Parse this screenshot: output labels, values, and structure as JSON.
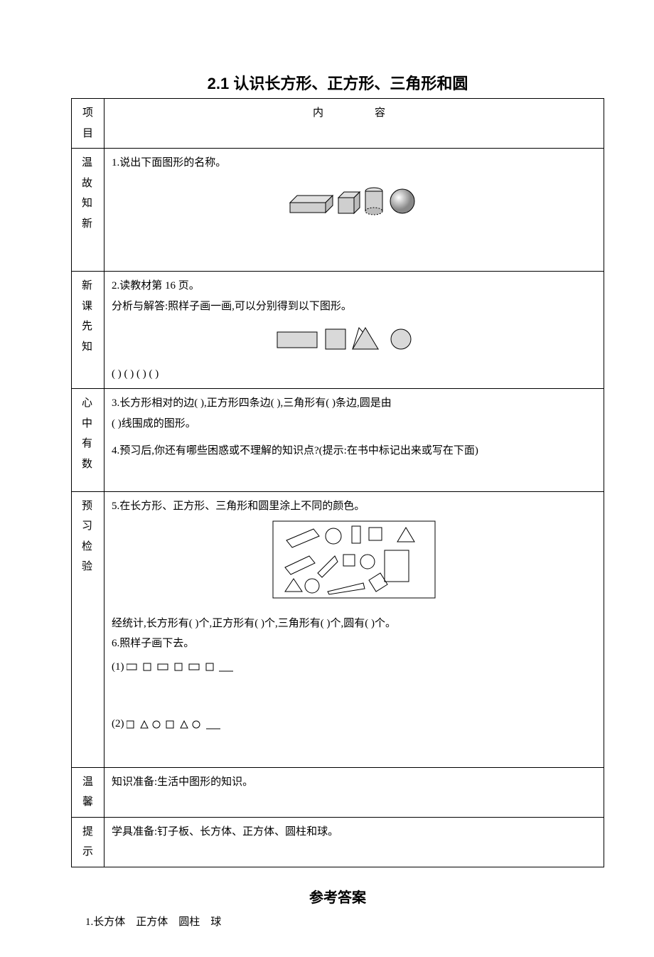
{
  "title": "2.1  认识长方形、正方形、三角形和圆",
  "table": {
    "header": {
      "left": "项目",
      "right_label": "内　　容"
    },
    "warm": {
      "label": "温故知新",
      "q1": "1.说出下面图形的名称。",
      "solids_fill": "#d9d9d9",
      "solids_stroke": "#000000"
    },
    "new": {
      "label": "新课先知",
      "line1": "2.读教材第 16 页。",
      "line2": "分析与解答:照样子画一画,可以分别得到以下图形。",
      "flat_fill": "#d9d9d9",
      "flat_stroke": "#000000",
      "parens": "(       )     (       )       (       )          (        )"
    },
    "heart": {
      "label": "心中有数",
      "line1": "3.长方形相对的边(          ),正方形四条边(          ),三角形有(          )条边,圆是由",
      "line1b": "(          )线围成的图形。",
      "line2": "4.预习后,你还有哪些困惑或不理解的知识点?(提示:在书中标记出来或写在下面)"
    },
    "check": {
      "label": "预习检验",
      "line1": "5.在长方形、正方形、三角形和圆里涂上不同的颜色。",
      "stats": "经统计,长方形有(       )个,正方形有(       )个,三角形有(       )个,圆有(       )个。",
      "line2": "6.照样子画下去。",
      "sub1": "(1)",
      "sub2": "(2)"
    },
    "warm2": {
      "label1": "温馨",
      "label2": "提示",
      "line1": "知识准备:生活中图形的知识。",
      "line2": "学具准备:钉子板、长方体、正方体、圆柱和球。"
    }
  },
  "answers": {
    "title": "参考答案",
    "a1": "1.长方体　正方体　圆柱　球"
  },
  "colors": {
    "border": "#000000",
    "bg": "#ffffff"
  }
}
